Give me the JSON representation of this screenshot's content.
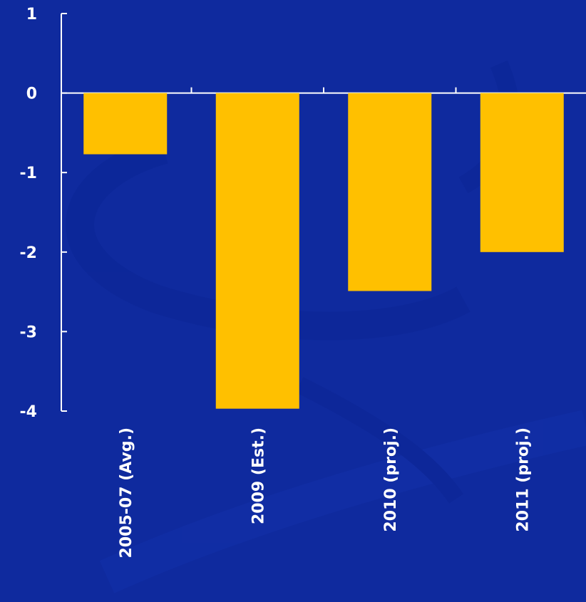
{
  "chart_data": {
    "type": "bar",
    "title": "",
    "xlabel": "",
    "ylabel": "",
    "categories": [
      "2005-07 (Avg.)",
      "2009 (Est.)",
      "2010 (proj.)",
      "2011 (proj.)"
    ],
    "values": [
      -0.77,
      -3.97,
      -2.49,
      -2.0
    ],
    "ylim": [
      -4,
      1
    ],
    "yticks": [
      1,
      0,
      -1,
      -2,
      -3,
      -4
    ],
    "grid": false,
    "legend": "none",
    "colors": {
      "bar": "#FFC000",
      "background": "#0F2A9E",
      "axis": "#FFFFFF",
      "text": "#FFFFFF"
    }
  }
}
